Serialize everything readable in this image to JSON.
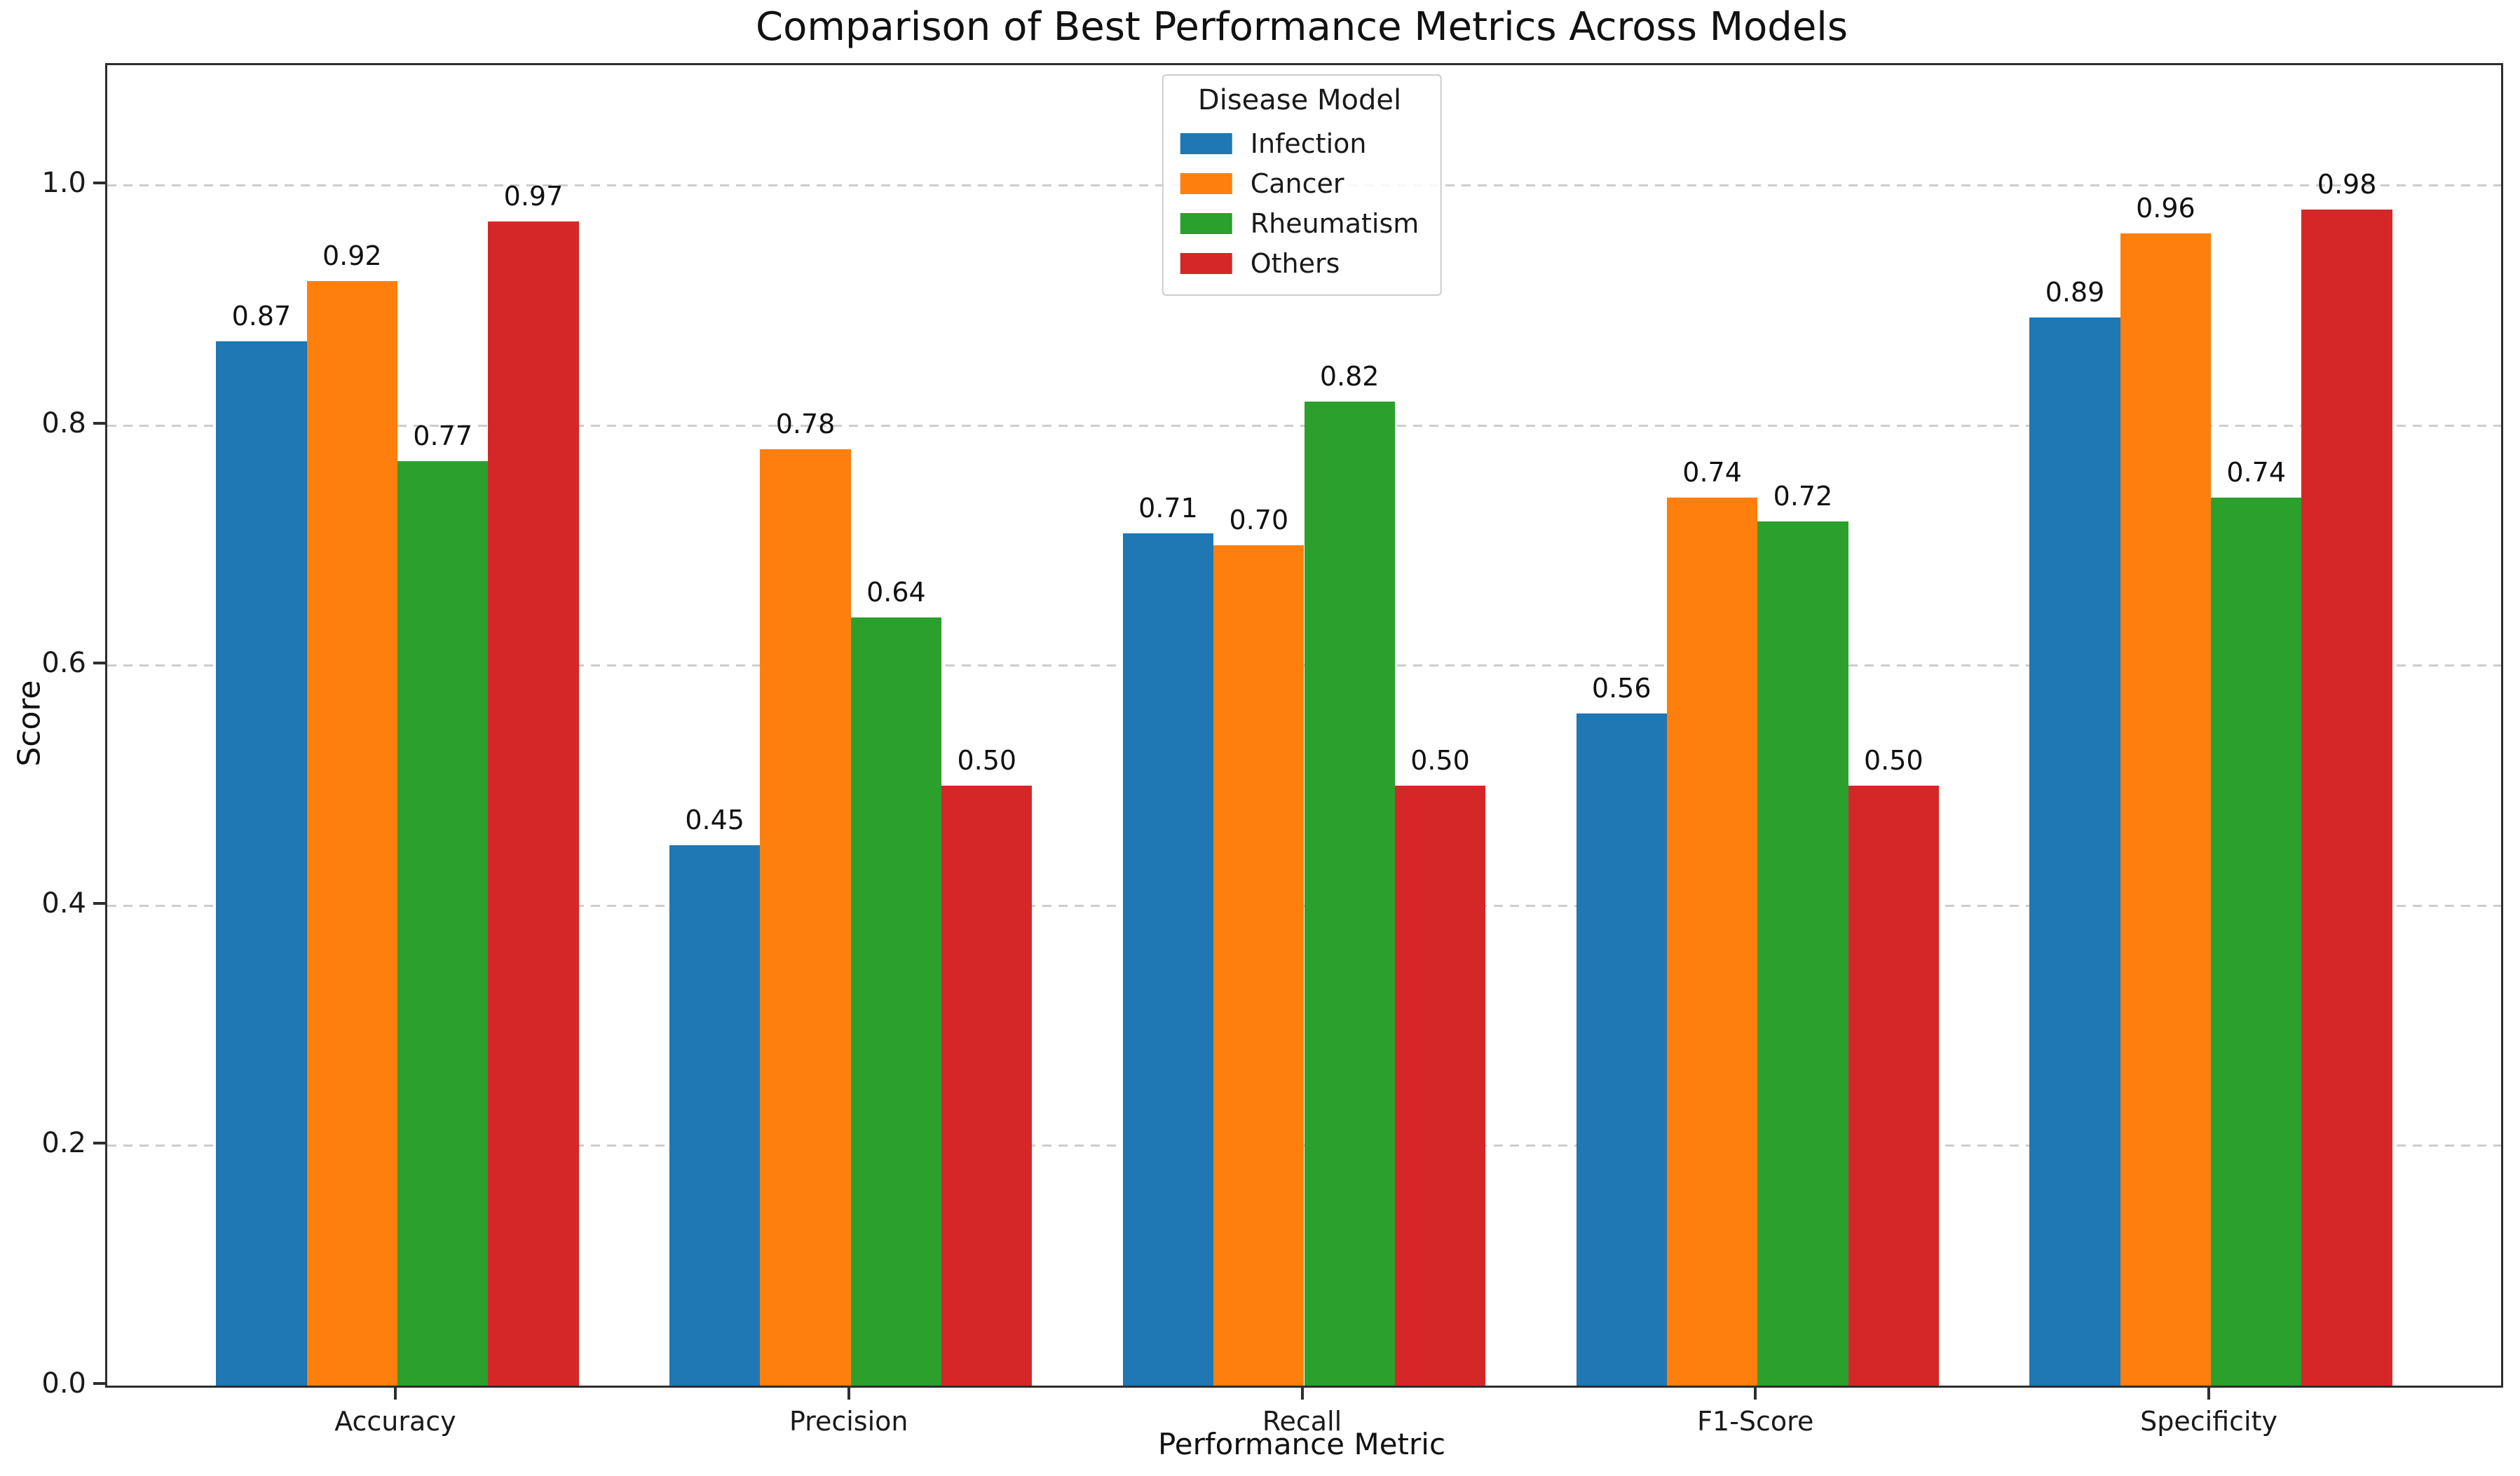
{
  "figure": {
    "title": "Comparison of Best Performance Metrics Across Models",
    "xlabel": "Performance Metric",
    "ylabel": "Score"
  },
  "legend": {
    "title": "Disease Model",
    "entries": [
      {
        "label": "Infection",
        "color": "#1f77b4"
      },
      {
        "label": "Cancer",
        "color": "#ff7f0e"
      },
      {
        "label": "Rheumatism",
        "color": "#2ca02c"
      },
      {
        "label": "Others",
        "color": "#d62728"
      }
    ]
  },
  "chart_data": {
    "type": "bar",
    "title": "Comparison of Best Performance Metrics Across Models",
    "xlabel": "Performance Metric",
    "ylabel": "Score",
    "categories": [
      "Accuracy",
      "Precision",
      "Recall",
      "F1-Score",
      "Specificity"
    ],
    "series": [
      {
        "name": "Infection",
        "color": "#1f77b4",
        "values": [
          0.87,
          0.45,
          0.71,
          0.56,
          0.89
        ]
      },
      {
        "name": "Cancer",
        "color": "#ff7f0e",
        "values": [
          0.92,
          0.78,
          0.7,
          0.74,
          0.96
        ]
      },
      {
        "name": "Rheumatism",
        "color": "#2ca02c",
        "values": [
          0.77,
          0.64,
          0.82,
          0.72,
          0.74
        ]
      },
      {
        "name": "Others",
        "color": "#d62728",
        "values": [
          0.97,
          0.5,
          0.5,
          0.5,
          0.98
        ]
      }
    ],
    "yticks": [
      0.0,
      0.2,
      0.4,
      0.6,
      0.8,
      1.0
    ],
    "ytick_labels": [
      "0.0",
      "0.2",
      "0.4",
      "0.6",
      "0.8",
      "1.0"
    ],
    "ylim": [
      0,
      1.1
    ],
    "bar_width_units": 0.2,
    "group_padding_units": 0.64,
    "grid": "dashed-horizontal",
    "grid_color": "#cdcdcd",
    "legend_position": "upper center",
    "legend_title": "Disease Model",
    "value_label_format": "2dp"
  }
}
